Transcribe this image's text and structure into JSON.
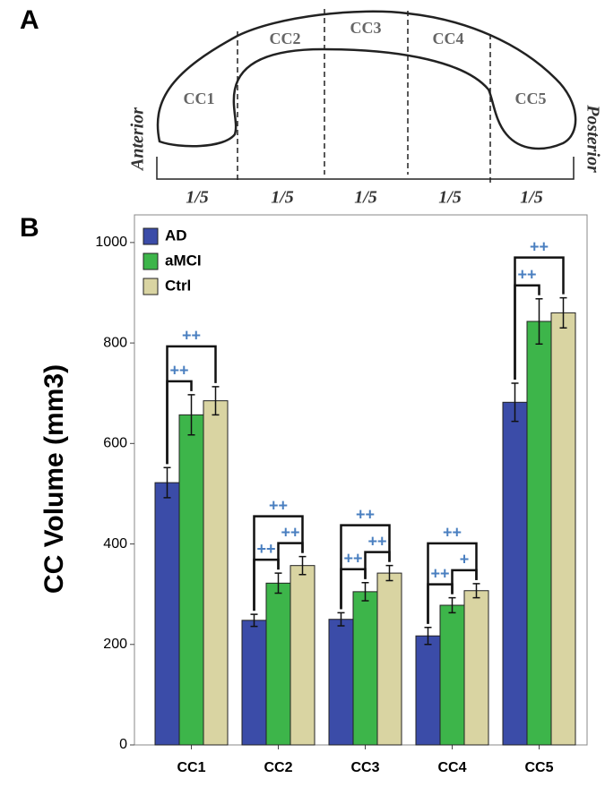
{
  "panel_a": {
    "label": "A",
    "regions": [
      "CC1",
      "CC2",
      "CC3",
      "CC4",
      "CC5"
    ],
    "anterior": "Anterior",
    "posterior": "Posterior",
    "fractions": [
      "1/5",
      "1/5",
      "1/5",
      "1/5",
      "1/5"
    ]
  },
  "chart_data": {
    "type": "bar",
    "panel_label": "B",
    "y_label": "CC Volume (mm3)",
    "categories": [
      "CC1",
      "CC2",
      "CC3",
      "CC4",
      "CC5"
    ],
    "series": [
      {
        "name": "AD",
        "color": "#3b4ca8",
        "values": [
          522,
          248,
          250,
          217,
          682
        ],
        "error": [
          30,
          12,
          13,
          17,
          38
        ]
      },
      {
        "name": "aMCI",
        "color": "#3db54a",
        "values": [
          657,
          322,
          305,
          278,
          843
        ],
        "error": [
          40,
          20,
          18,
          15,
          45
        ]
      },
      {
        "name": "Ctrl",
        "color": "#d9d4a2",
        "values": [
          685,
          357,
          342,
          307,
          860
        ],
        "error": [
          28,
          18,
          15,
          14,
          30
        ]
      }
    ],
    "ylim": [
      0,
      1055
    ],
    "yticks": [
      0,
      200,
      400,
      600,
      800,
      1000
    ],
    "legend": "upper left",
    "significance": [
      {
        "category": "CC1",
        "pair": [
          "AD",
          "aMCI"
        ],
        "label": "++"
      },
      {
        "category": "CC1",
        "pair": [
          "AD",
          "Ctrl"
        ],
        "label": "++"
      },
      {
        "category": "CC2",
        "pair": [
          "AD",
          "aMCI"
        ],
        "label": "++"
      },
      {
        "category": "CC2",
        "pair": [
          "aMCI",
          "Ctrl"
        ],
        "label": "++"
      },
      {
        "category": "CC2",
        "pair": [
          "AD",
          "Ctrl"
        ],
        "label": "++"
      },
      {
        "category": "CC3",
        "pair": [
          "AD",
          "aMCI"
        ],
        "label": "++"
      },
      {
        "category": "CC3",
        "pair": [
          "aMCI",
          "Ctrl"
        ],
        "label": "++"
      },
      {
        "category": "CC3",
        "pair": [
          "AD",
          "Ctrl"
        ],
        "label": "++"
      },
      {
        "category": "CC4",
        "pair": [
          "AD",
          "aMCI"
        ],
        "label": "++"
      },
      {
        "category": "CC4",
        "pair": [
          "aMCI",
          "Ctrl"
        ],
        "label": "+"
      },
      {
        "category": "CC4",
        "pair": [
          "AD",
          "Ctrl"
        ],
        "label": "++"
      },
      {
        "category": "CC5",
        "pair": [
          "AD",
          "aMCI"
        ],
        "label": "++"
      },
      {
        "category": "CC5",
        "pair": [
          "AD",
          "Ctrl"
        ],
        "label": "++"
      }
    ]
  }
}
